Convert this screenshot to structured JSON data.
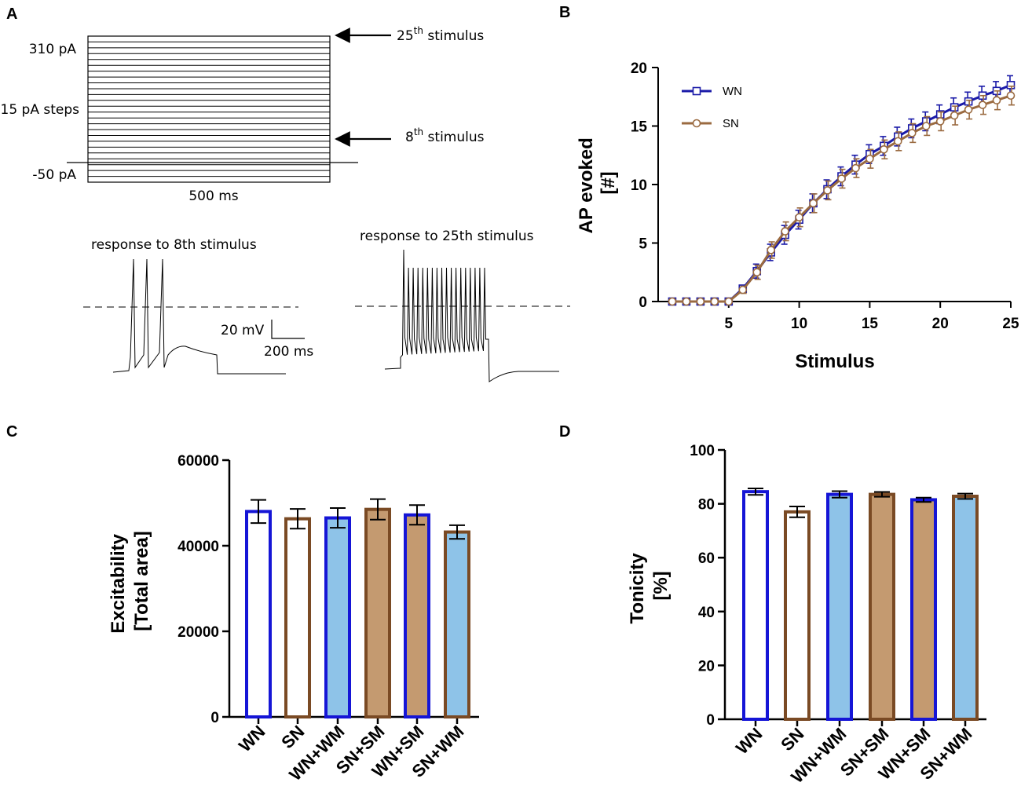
{
  "panels": {
    "a": "A",
    "b": "B",
    "c": "C",
    "d": "D"
  },
  "protocol": {
    "top_current": "310 pA",
    "step_size": "15 pA steps",
    "bottom_current": "-50 pA",
    "duration": "500 ms",
    "arrow_top_prefix": "25",
    "arrow_top_sup": "th",
    "arrow_top_suffix": " stimulus",
    "arrow_mid_prefix": "8",
    "arrow_mid_sup": "th",
    "arrow_mid_suffix": " stimulus",
    "step_count": 25
  },
  "traces": {
    "left_title": "response to 8th stimulus",
    "right_title": "response to 25th stimulus",
    "scale_v": "20 mV",
    "scale_t": "200 ms",
    "left_spike_count": 3,
    "right_spike_count": 18
  },
  "colors": {
    "wn": "#1515d6",
    "sn": "#7a4a24",
    "wn_line": "#1a1aa8",
    "sn_line": "#9a6a40",
    "wm_fill": "#8ec3e8",
    "sm_fill": "#c49a70"
  },
  "chart_data": [
    {
      "id": "B",
      "type": "line",
      "title": "",
      "xlabel": "Stimulus",
      "ylabel": "AP evoked\n[#]",
      "xlim": [
        0,
        25
      ],
      "ylim": [
        0,
        20
      ],
      "xticks": [
        "5",
        "10",
        "15",
        "20",
        "25"
      ],
      "yticks": [
        "0",
        "5",
        "10",
        "15",
        "20"
      ],
      "legend_position": "top-left",
      "x": [
        1,
        2,
        3,
        4,
        5,
        6,
        7,
        8,
        9,
        10,
        11,
        12,
        13,
        14,
        15,
        16,
        17,
        18,
        19,
        20,
        21,
        22,
        23,
        24,
        25
      ],
      "series": [
        {
          "name": "WN",
          "marker": "square",
          "values": [
            0,
            0,
            0,
            0,
            0,
            1.1,
            2.6,
            4.2,
            5.7,
            7.0,
            8.4,
            9.6,
            10.7,
            11.7,
            12.6,
            13.3,
            14.1,
            14.8,
            15.4,
            16.0,
            16.6,
            17.1,
            17.6,
            18.0,
            18.5
          ],
          "errors": [
            0,
            0,
            0,
            0,
            0,
            0.3,
            0.6,
            0.7,
            0.8,
            0.8,
            0.8,
            0.8,
            0.8,
            0.8,
            0.8,
            0.8,
            0.8,
            0.8,
            0.8,
            0.8,
            0.8,
            0.8,
            0.8,
            0.8,
            0.8
          ]
        },
        {
          "name": "SN",
          "marker": "circle",
          "values": [
            0,
            0,
            0,
            0,
            0,
            1.0,
            2.5,
            4.4,
            6.0,
            7.2,
            8.4,
            9.5,
            10.5,
            11.4,
            12.2,
            13.0,
            13.7,
            14.4,
            15.0,
            15.4,
            15.9,
            16.4,
            16.8,
            17.2,
            17.6
          ],
          "errors": [
            0,
            0,
            0,
            0,
            0,
            0.3,
            0.6,
            0.7,
            0.8,
            0.8,
            0.8,
            0.8,
            0.8,
            0.8,
            0.8,
            0.8,
            0.8,
            0.8,
            0.8,
            0.8,
            0.8,
            0.8,
            0.8,
            0.8,
            0.8
          ]
        }
      ]
    },
    {
      "id": "C",
      "type": "bar",
      "title": "",
      "xlabel": "",
      "ylabel": "Excitability\n[Total area]",
      "ylim": [
        0,
        60000
      ],
      "yticks": [
        "0",
        "20000",
        "40000",
        "60000"
      ],
      "categories": [
        "WN",
        "SN",
        "WN+WM",
        "SN+SM",
        "WN+SM",
        "SN+WM"
      ],
      "values": [
        48000,
        46300,
        46500,
        48500,
        47200,
        43200
      ],
      "errors": [
        2700,
        2300,
        2300,
        2400,
        2300,
        1600
      ],
      "fills": [
        "#ffffff",
        "#ffffff",
        "#8ec3e8",
        "#c49a70",
        "#c49a70",
        "#8ec3e8"
      ],
      "outlines": [
        "#1515d6",
        "#7a4a24",
        "#1515d6",
        "#7a4a24",
        "#1515d6",
        "#7a4a24"
      ]
    },
    {
      "id": "D",
      "type": "bar",
      "title": "",
      "xlabel": "",
      "ylabel": "Tonicity\n[%]",
      "ylim": [
        0,
        100
      ],
      "yticks": [
        "0",
        "20",
        "40",
        "60",
        "80",
        "100"
      ],
      "categories": [
        "WN",
        "SN",
        "WN+WM",
        "SN+SM",
        "WN+SM",
        "SN+WM"
      ],
      "values": [
        84.5,
        77,
        83.5,
        83.5,
        81.5,
        82.8
      ],
      "errors": [
        1.2,
        2.0,
        1.2,
        0.9,
        0.8,
        1.0
      ],
      "fills": [
        "#ffffff",
        "#ffffff",
        "#8ec3e8",
        "#c49a70",
        "#c49a70",
        "#8ec3e8"
      ],
      "outlines": [
        "#1515d6",
        "#7a4a24",
        "#1515d6",
        "#7a4a24",
        "#1515d6",
        "#7a4a24"
      ]
    }
  ]
}
